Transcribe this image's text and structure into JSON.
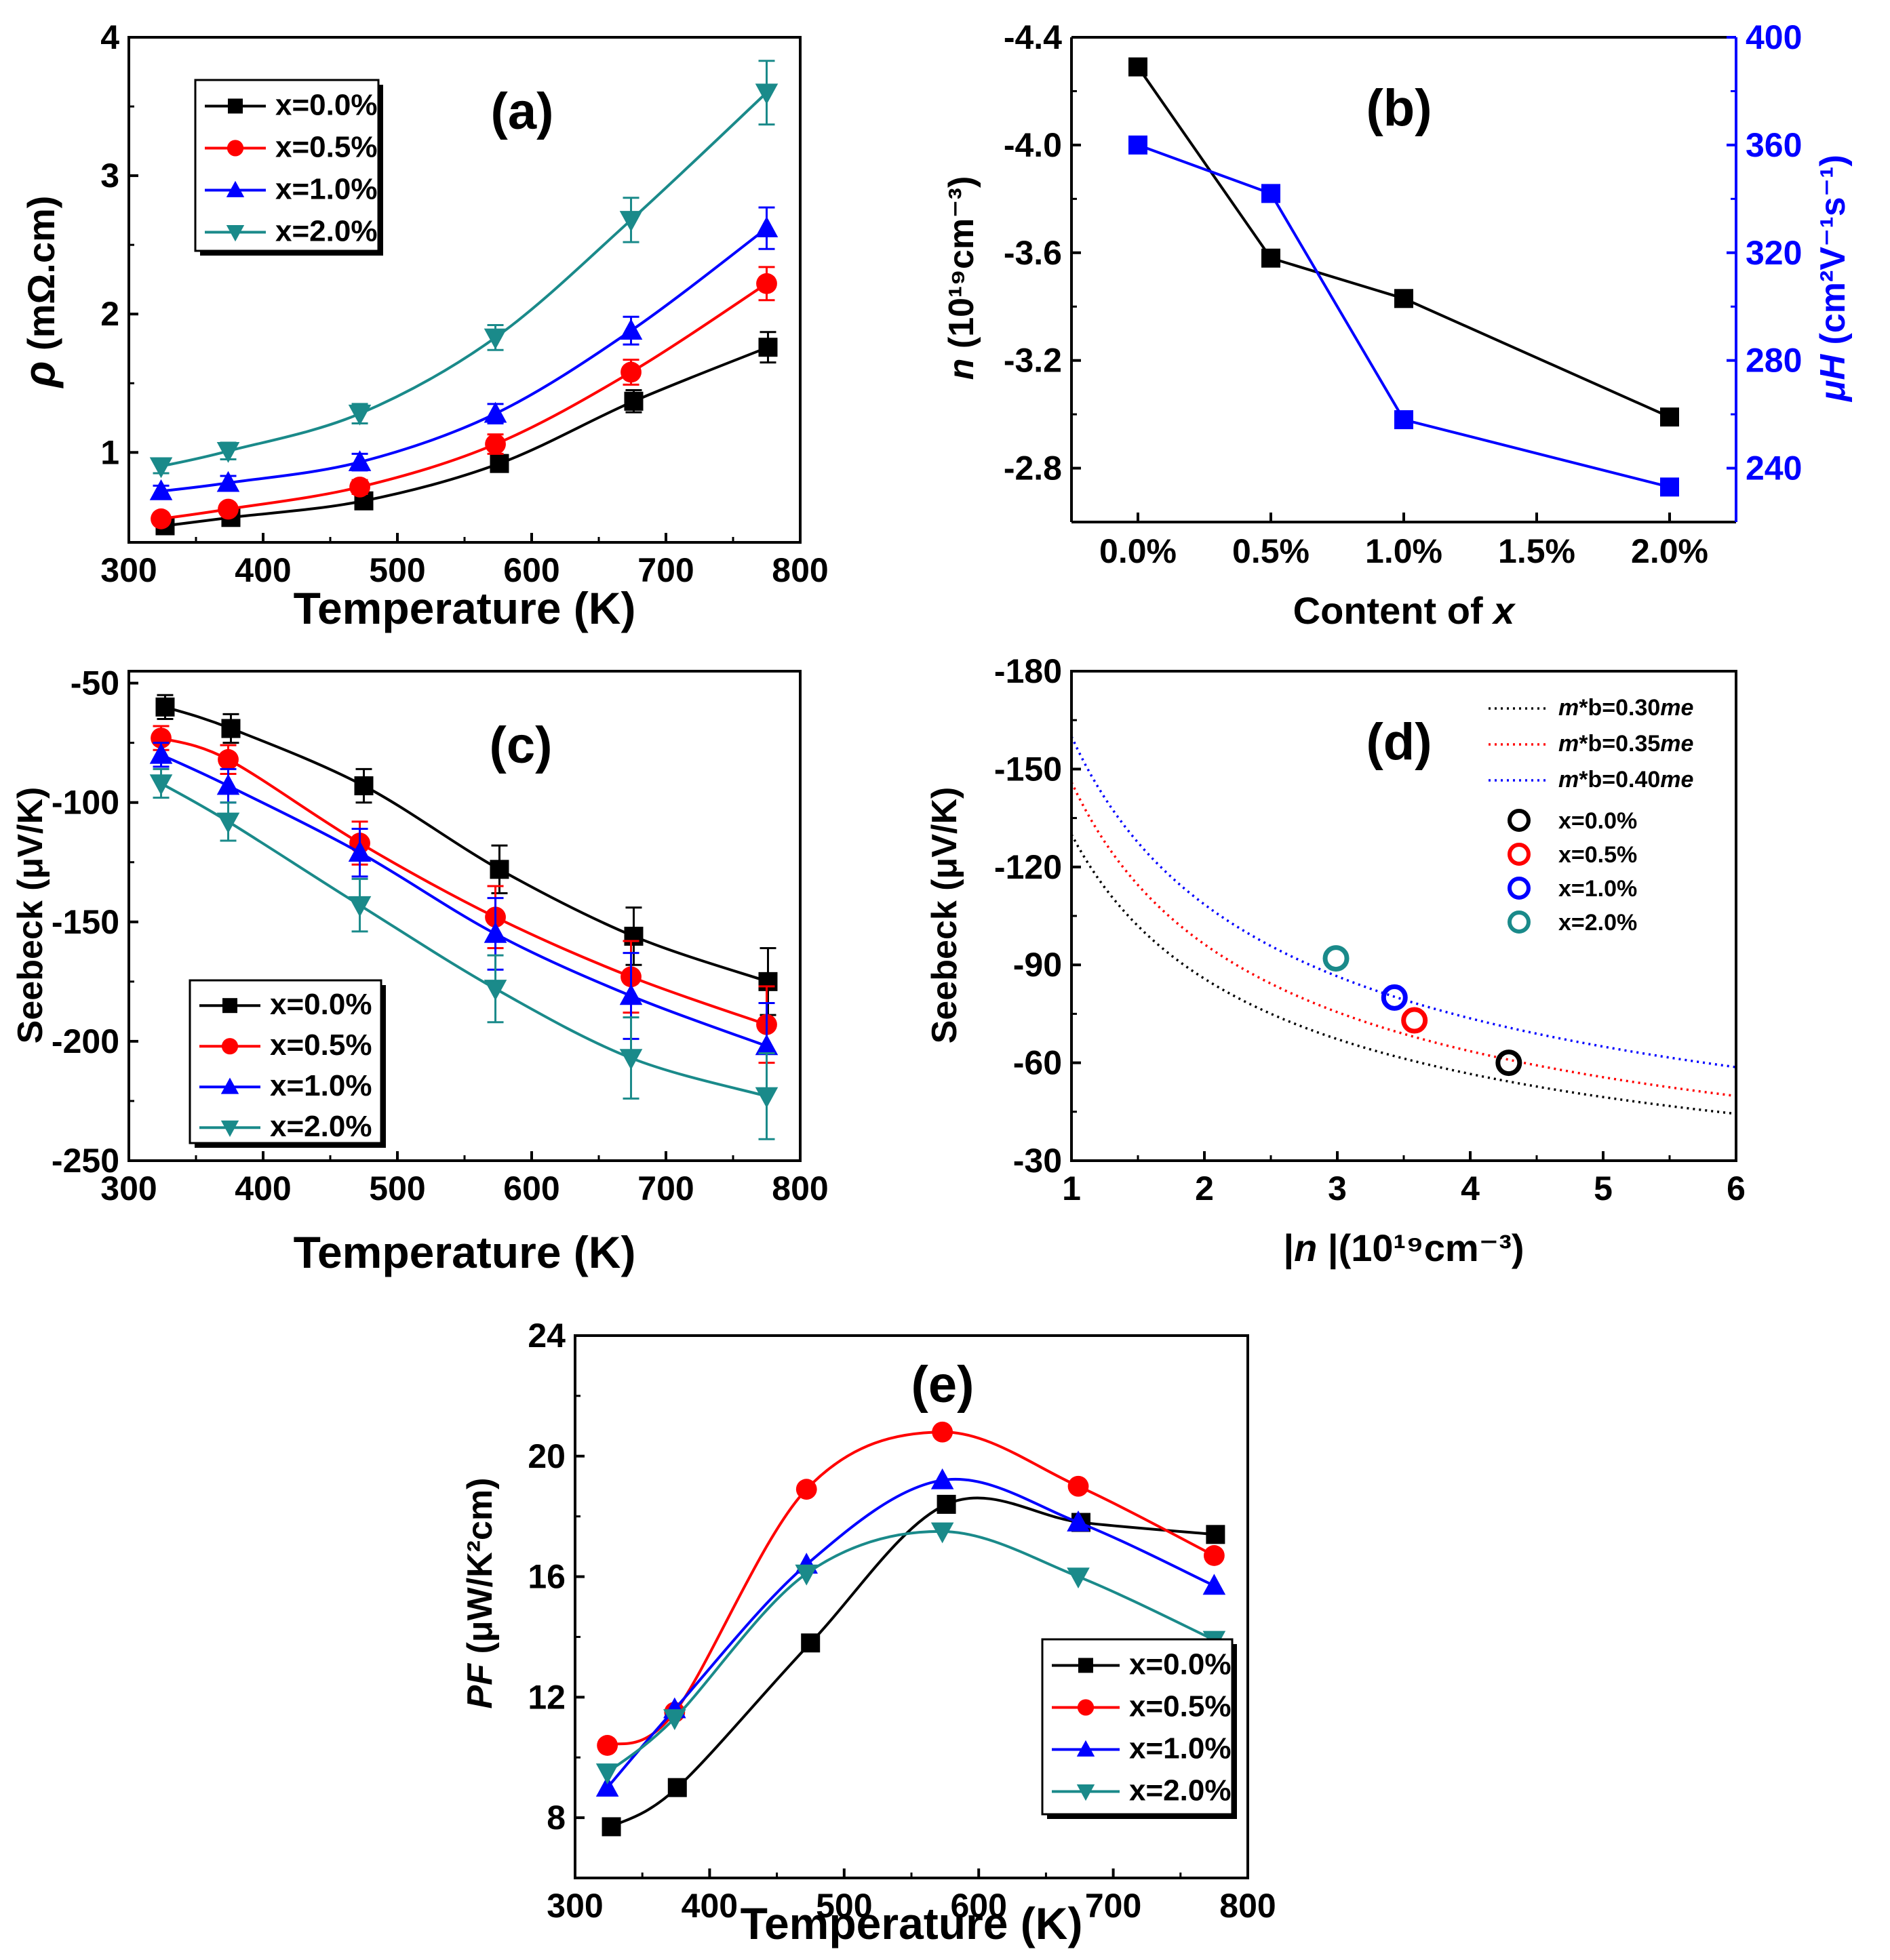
{
  "chart_data": [
    {
      "id": "a",
      "type": "line",
      "panel_label": "(a)",
      "xlabel": "Temperature (K)",
      "ylabel_symbol": "ρ",
      "ylabel_unit": " (mΩ.cm)",
      "xlim": [
        300,
        800
      ],
      "ylim": [
        0.35,
        4
      ],
      "xticks": [
        300,
        400,
        500,
        600,
        700,
        800
      ],
      "xtick_labels": [
        "300",
        "400",
        "500",
        "600",
        "700",
        "800"
      ],
      "yticks": [
        1,
        2,
        3,
        4
      ],
      "ytick_labels": [
        "1",
        "2",
        "3",
        "4"
      ],
      "legend_position": "top-left",
      "series": [
        {
          "name": "x=0.0%",
          "color": "#000000",
          "marker": "square",
          "x": [
            327,
            376,
            475,
            576,
            676,
            776
          ],
          "y": [
            0.47,
            0.53,
            0.65,
            0.92,
            1.37,
            1.76
          ],
          "err": [
            0.04,
            0.04,
            0.05,
            0.06,
            0.08,
            0.11
          ],
          "smooth": true
        },
        {
          "name": "x=0.5%",
          "color": "#ff0000",
          "marker": "circle",
          "x": [
            324,
            374,
            472,
            573,
            674,
            775
          ],
          "y": [
            0.52,
            0.59,
            0.75,
            1.06,
            1.58,
            2.22
          ],
          "err": [
            0.04,
            0.04,
            0.05,
            0.07,
            0.09,
            0.12
          ],
          "smooth": true
        },
        {
          "name": "x=1.0%",
          "color": "#0000ff",
          "marker": "triangle-up",
          "x": [
            324,
            374,
            472,
            573,
            674,
            775
          ],
          "y": [
            0.72,
            0.78,
            0.93,
            1.28,
            1.88,
            2.62
          ],
          "err": [
            0.04,
            0.05,
            0.06,
            0.07,
            0.1,
            0.15
          ],
          "smooth": true
        },
        {
          "name": "x=2.0%",
          "color": "#1a8a8a",
          "marker": "triangle-down",
          "x": [
            324,
            374,
            472,
            573,
            674,
            775
          ],
          "y": [
            0.9,
            1.01,
            1.28,
            1.83,
            2.68,
            3.6
          ],
          "err": [
            0.05,
            0.06,
            0.07,
            0.09,
            0.16,
            0.23
          ],
          "smooth": true
        }
      ]
    },
    {
      "id": "b",
      "type": "line",
      "panel_label": "(b)",
      "xlabel_prefix": "Content of ",
      "xlabel_var": "x",
      "ylabel_left_var": "n",
      "ylabel_left_unit": "(10¹⁹cm⁻³)",
      "ylabel_right_var": "μH",
      "ylabel_right_unit": "(cm²V⁻¹s⁻¹)",
      "categories": [
        "0.0%",
        "0.5%",
        "1.0%",
        "1.5%",
        "2.0%"
      ],
      "xlim": [
        -0.25,
        2.25
      ],
      "xticks": [
        0,
        0.5,
        1,
        1.5,
        2
      ],
      "ylim_left": [
        -4.4,
        -2.6
      ],
      "yticks_left": [
        -4.4,
        -4.0,
        -3.6,
        -3.2,
        -2.8
      ],
      "ytick_labels_left": [
        "-4.4",
        "-4.0",
        "-3.6",
        "-3.2",
        "-2.8"
      ],
      "ylim_right": [
        220,
        400
      ],
      "yticks_right": [
        240,
        280,
        320,
        360,
        400
      ],
      "ytick_labels_right": [
        "240",
        "280",
        "320",
        "360",
        "400"
      ],
      "right_axis_color": "#0000ff",
      "series": [
        {
          "name": "n",
          "axis": "left",
          "color": "#000000",
          "marker": "square",
          "x": [
            0,
            0.5,
            1,
            2
          ],
          "y": [
            -4.29,
            -3.58,
            -3.43,
            -2.99
          ]
        },
        {
          "name": "μH",
          "axis": "right",
          "color": "#0000ff",
          "marker": "square",
          "x": [
            0,
            0.5,
            1,
            2
          ],
          "y": [
            360,
            342,
            258,
            233
          ]
        }
      ]
    },
    {
      "id": "c",
      "type": "line",
      "panel_label": "(c)",
      "xlabel": "Temperature (K)",
      "ylabel": "Seebeck (μV/K)",
      "xlim": [
        300,
        800
      ],
      "ylim": [
        -250,
        -45
      ],
      "xticks": [
        300,
        400,
        500,
        600,
        700,
        800
      ],
      "xtick_labels": [
        "300",
        "400",
        "500",
        "600",
        "700",
        "800"
      ],
      "yticks": [
        -250,
        -200,
        -150,
        -100,
        -50
      ],
      "ytick_labels": [
        "-250",
        "-200",
        "-150",
        "-100",
        "-50"
      ],
      "legend_position": "bottom-left",
      "series": [
        {
          "name": "x=0.0%",
          "color": "#000000",
          "marker": "square",
          "x": [
            327,
            376,
            475,
            576,
            676,
            776
          ],
          "y": [
            -60,
            -69,
            -93,
            -128,
            -156,
            -175
          ],
          "err": [
            5,
            6,
            7,
            10,
            12,
            14
          ],
          "smooth": true
        },
        {
          "name": "x=0.5%",
          "color": "#ff0000",
          "marker": "circle",
          "x": [
            324,
            374,
            472,
            573,
            674,
            775
          ],
          "y": [
            -73,
            -82,
            -117,
            -148,
            -173,
            -193
          ],
          "err": [
            5,
            6,
            9,
            13,
            15,
            16
          ],
          "smooth": true
        },
        {
          "name": "x=1.0%",
          "color": "#0000ff",
          "marker": "triangle-up",
          "x": [
            324,
            374,
            472,
            573,
            674,
            775
          ],
          "y": [
            -80,
            -93,
            -121,
            -155,
            -181,
            -202
          ],
          "err": [
            5,
            7,
            10,
            15,
            18,
            18
          ],
          "smooth": true
        },
        {
          "name": "x=2.0%",
          "color": "#1a8a8a",
          "marker": "triangle-down",
          "x": [
            324,
            374,
            472,
            573,
            674,
            775
          ],
          "y": [
            -92,
            -108,
            -143,
            -178,
            -207,
            -223
          ],
          "err": [
            6,
            8,
            11,
            14,
            17,
            18
          ],
          "smooth": true
        }
      ]
    },
    {
      "id": "d",
      "type": "scatter",
      "panel_label": "(d)",
      "xlabel_var": "n",
      "xlabel_unit": "(10¹⁹cm⁻³)",
      "ylabel": "Seebeck (μV/K)",
      "xlim": [
        1,
        6
      ],
      "ylim": [
        -180,
        -30
      ],
      "xticks": [
        1,
        2,
        3,
        4,
        5,
        6
      ],
      "xtick_labels": [
        "1",
        "2",
        "3",
        "4",
        "5",
        "6"
      ],
      "yticks": [
        -180,
        -150,
        -120,
        -90,
        -60,
        -30
      ],
      "ytick_labels": [
        "-180",
        "-150",
        "-120",
        "-90",
        "-60",
        "-30"
      ],
      "legend_position": "top-right",
      "curves": [
        {
          "name_m": "m",
          "name_mid": "*b=0.30",
          "name_e": "me",
          "label": "m*b=0.30me",
          "color": "#000000",
          "a": -130,
          "p": 0.6
        },
        {
          "name_m": "m",
          "name_mid": "*b=0.35",
          "name_e": "me",
          "label": "m*b=0.35me",
          "color": "#ff0000",
          "a": -146,
          "p": 0.6
        },
        {
          "name_m": "m",
          "name_mid": "*b=0.40",
          "name_e": "me",
          "label": "m*b=0.40me",
          "color": "#0000ff",
          "a": -160,
          "p": 0.56
        }
      ],
      "points": [
        {
          "name": "x=0.0%",
          "color": "#000000",
          "x": 4.29,
          "y": -60
        },
        {
          "name": "x=0.5%",
          "color": "#ff0000",
          "x": 3.58,
          "y": -73
        },
        {
          "name": "x=1.0%",
          "color": "#0000ff",
          "x": 3.43,
          "y": -80
        },
        {
          "name": "x=2.0%",
          "color": "#1a8a8a",
          "x": 2.99,
          "y": -92
        }
      ]
    },
    {
      "id": "e",
      "type": "line",
      "panel_label": "(e)",
      "xlabel": "Temperature (K)",
      "ylabel_var": "PF",
      "ylabel_unit": " (μW/K²cm)",
      "xlim": [
        300,
        800
      ],
      "ylim": [
        6,
        24
      ],
      "xticks": [
        300,
        400,
        500,
        600,
        700,
        800
      ],
      "xtick_labels": [
        "300",
        "400",
        "500",
        "600",
        "700",
        "800"
      ],
      "yticks": [
        8,
        12,
        16,
        20,
        24
      ],
      "ytick_labels": [
        "8",
        "12",
        "16",
        "20",
        "24"
      ],
      "legend_position": "bottom-right",
      "series": [
        {
          "name": "x=0.0%",
          "color": "#000000",
          "marker": "square",
          "x": [
            327,
            376,
            475,
            576,
            676,
            776
          ],
          "y": [
            7.7,
            9.0,
            13.8,
            18.4,
            17.8,
            17.4
          ],
          "smooth": true
        },
        {
          "name": "x=0.5%",
          "color": "#ff0000",
          "marker": "circle",
          "x": [
            324,
            374,
            472,
            573,
            674,
            775
          ],
          "y": [
            10.4,
            11.5,
            18.9,
            20.8,
            19.0,
            16.7
          ],
          "smooth": true
        },
        {
          "name": "x=1.0%",
          "color": "#0000ff",
          "marker": "triangle-up",
          "x": [
            324,
            374,
            472,
            573,
            674,
            775
          ],
          "y": [
            9.0,
            11.6,
            16.4,
            19.2,
            17.8,
            15.7
          ],
          "smooth": true
        },
        {
          "name": "x=2.0%",
          "color": "#1a8a8a",
          "marker": "triangle-down",
          "x": [
            324,
            374,
            472,
            573,
            674,
            775
          ],
          "y": [
            9.5,
            11.3,
            16.1,
            17.5,
            16.0,
            13.9
          ],
          "smooth": true
        }
      ]
    }
  ]
}
